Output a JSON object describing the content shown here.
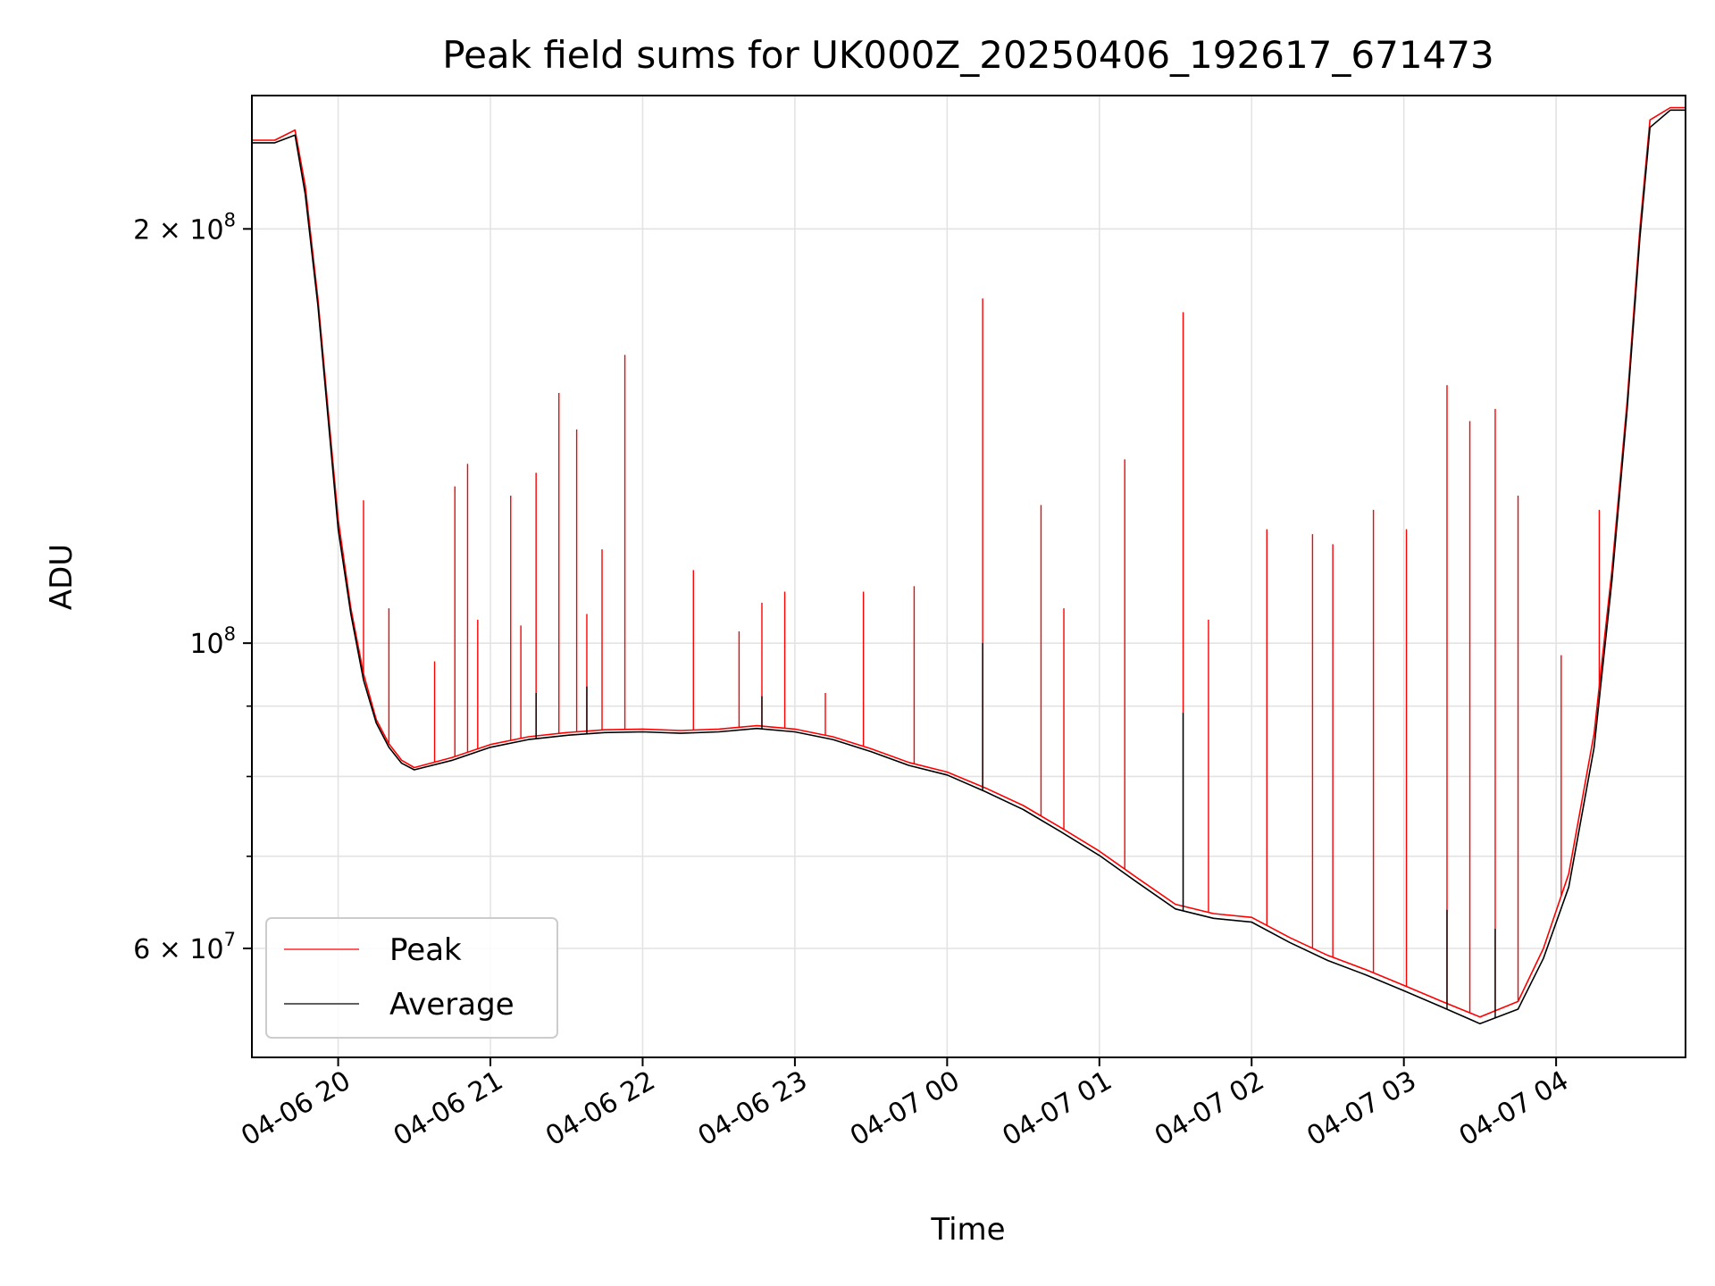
{
  "chart_data": {
    "type": "line",
    "title": "Peak field sums for UK000Z_20250406_192617_671473",
    "xlabel": "Time",
    "ylabel": "ADU",
    "y_scale": "log",
    "ylim": [
      50000000,
      250000000
    ],
    "xlim": [
      "2025-04-06 19:26",
      "2025-04-07 04:51"
    ],
    "grid": true,
    "legend_position": "lower-left",
    "x_ticks": [
      {
        "t": "2025-04-06 20:00",
        "label": "04-06 20"
      },
      {
        "t": "2025-04-06 21:00",
        "label": "04-06 21"
      },
      {
        "t": "2025-04-06 22:00",
        "label": "04-06 22"
      },
      {
        "t": "2025-04-06 23:00",
        "label": "04-06 23"
      },
      {
        "t": "2025-04-07 00:00",
        "label": "04-07 00"
      },
      {
        "t": "2025-04-07 01:00",
        "label": "04-07 01"
      },
      {
        "t": "2025-04-07 02:00",
        "label": "04-07 02"
      },
      {
        "t": "2025-04-07 03:00",
        "label": "04-07 03"
      },
      {
        "t": "2025-04-07 04:00",
        "label": "04-07 04"
      }
    ],
    "y_ticks": [
      {
        "value": 200000000,
        "base": "2 × 10",
        "exp": "8"
      },
      {
        "value": 100000000,
        "base": "10",
        "exp": "8"
      },
      {
        "value": 60000000,
        "base": "6 × 10",
        "exp": "7"
      }
    ],
    "y_minor_ticks": [
      70000000,
      80000000,
      90000000
    ],
    "series": [
      {
        "name": "Peak",
        "color": "#ff0000",
        "baseline": [
          [
            "2025-04-06 19:26",
            232000000
          ],
          [
            "2025-04-06 19:35",
            232000000
          ],
          [
            "2025-04-06 19:43",
            236000000
          ],
          [
            "2025-04-06 19:47",
            215000000
          ],
          [
            "2025-04-06 19:52",
            178000000
          ],
          [
            "2025-04-06 19:56",
            148000000
          ],
          [
            "2025-04-06 20:00",
            123000000
          ],
          [
            "2025-04-06 20:05",
            106000000
          ],
          [
            "2025-04-06 20:10",
            95000000
          ],
          [
            "2025-04-06 20:15",
            88000000
          ],
          [
            "2025-04-06 20:20",
            84500000
          ],
          [
            "2025-04-06 20:25",
            82200000
          ],
          [
            "2025-04-06 20:30",
            81200000
          ],
          [
            "2025-04-06 20:45",
            82600000
          ],
          [
            "2025-04-06 21:00",
            84400000
          ],
          [
            "2025-04-06 21:15",
            85500000
          ],
          [
            "2025-04-06 21:30",
            86100000
          ],
          [
            "2025-04-06 21:45",
            86500000
          ],
          [
            "2025-04-06 22:00",
            86600000
          ],
          [
            "2025-04-06 22:15",
            86400000
          ],
          [
            "2025-04-06 22:30",
            86600000
          ],
          [
            "2025-04-06 22:45",
            87100000
          ],
          [
            "2025-04-06 23:00",
            86600000
          ],
          [
            "2025-04-06 23:15",
            85500000
          ],
          [
            "2025-04-06 23:30",
            83800000
          ],
          [
            "2025-04-06 23:45",
            81900000
          ],
          [
            "2025-04-07 00:00",
            80600000
          ],
          [
            "2025-04-07 00:15",
            78500000
          ],
          [
            "2025-04-07 00:30",
            76200000
          ],
          [
            "2025-04-07 00:45",
            73400000
          ],
          [
            "2025-04-07 01:00",
            70600000
          ],
          [
            "2025-04-07 01:15",
            67500000
          ],
          [
            "2025-04-07 01:30",
            64600000
          ],
          [
            "2025-04-07 01:45",
            63600000
          ],
          [
            "2025-04-07 02:00",
            63200000
          ],
          [
            "2025-04-07 02:15",
            61100000
          ],
          [
            "2025-04-07 02:30",
            59300000
          ],
          [
            "2025-04-07 02:45",
            57900000
          ],
          [
            "2025-04-07 03:00",
            56400000
          ],
          [
            "2025-04-07 03:15",
            54900000
          ],
          [
            "2025-04-07 03:30",
            53500000
          ],
          [
            "2025-04-07 03:45",
            54900000
          ],
          [
            "2025-04-07 03:55",
            60000000
          ],
          [
            "2025-04-07 04:05",
            68000000
          ],
          [
            "2025-04-07 04:15",
            86000000
          ],
          [
            "2025-04-07 04:22",
            113000000
          ],
          [
            "2025-04-07 04:28",
            150000000
          ],
          [
            "2025-04-07 04:33",
            200000000
          ],
          [
            "2025-04-07 04:37",
            240000000
          ],
          [
            "2025-04-07 04:45",
            245000000
          ],
          [
            "2025-04-07 04:51",
            245000000
          ]
        ],
        "spikes": [
          [
            "2025-04-06 20:10",
            127000000
          ],
          [
            "2025-04-06 20:20",
            106000000
          ],
          [
            "2025-04-06 20:38",
            97000000
          ],
          [
            "2025-04-06 20:46",
            130000000
          ],
          [
            "2025-04-06 20:51",
            135000000
          ],
          [
            "2025-04-06 20:55",
            104000000
          ],
          [
            "2025-04-06 21:08",
            128000000
          ],
          [
            "2025-04-06 21:12",
            103000000
          ],
          [
            "2025-04-06 21:18",
            133000000
          ],
          [
            "2025-04-06 21:27",
            152000000
          ],
          [
            "2025-04-06 21:34",
            143000000
          ],
          [
            "2025-04-06 21:38",
            105000000
          ],
          [
            "2025-04-06 21:44",
            117000000
          ],
          [
            "2025-04-06 21:53",
            162000000
          ],
          [
            "2025-04-06 22:20",
            113000000
          ],
          [
            "2025-04-06 22:38",
            102000000
          ],
          [
            "2025-04-06 22:47",
            107000000
          ],
          [
            "2025-04-06 22:56",
            109000000
          ],
          [
            "2025-04-06 23:12",
            92000000
          ],
          [
            "2025-04-06 23:27",
            109000000
          ],
          [
            "2025-04-06 23:47",
            110000000
          ],
          [
            "2025-04-07 00:14",
            178000000
          ],
          [
            "2025-04-07 00:37",
            126000000
          ],
          [
            "2025-04-07 00:46",
            106000000
          ],
          [
            "2025-04-07 01:10",
            136000000
          ],
          [
            "2025-04-07 01:33",
            174000000
          ],
          [
            "2025-04-07 01:43",
            104000000
          ],
          [
            "2025-04-07 02:06",
            121000000
          ],
          [
            "2025-04-07 02:24",
            120000000
          ],
          [
            "2025-04-07 02:32",
            118000000
          ],
          [
            "2025-04-07 02:48",
            125000000
          ],
          [
            "2025-04-07 03:01",
            121000000
          ],
          [
            "2025-04-07 03:17",
            154000000
          ],
          [
            "2025-04-07 03:26",
            145000000
          ],
          [
            "2025-04-07 03:36",
            148000000
          ],
          [
            "2025-04-07 03:45",
            128000000
          ],
          [
            "2025-04-07 04:02",
            98000000
          ],
          [
            "2025-04-07 04:17",
            125000000
          ]
        ]
      },
      {
        "name": "Average",
        "color": "#000000",
        "baseline": [
          [
            "2025-04-06 19:26",
            231000000
          ],
          [
            "2025-04-06 19:35",
            231000000
          ],
          [
            "2025-04-06 19:43",
            234000000
          ],
          [
            "2025-04-06 19:47",
            212000000
          ],
          [
            "2025-04-06 19:52",
            176000000
          ],
          [
            "2025-04-06 19:56",
            146000000
          ],
          [
            "2025-04-06 20:00",
            121000000
          ],
          [
            "2025-04-06 20:05",
            105000000
          ],
          [
            "2025-04-06 20:10",
            94000000
          ],
          [
            "2025-04-06 20:15",
            87500000
          ],
          [
            "2025-04-06 20:20",
            84000000
          ],
          [
            "2025-04-06 20:25",
            81800000
          ],
          [
            "2025-04-06 20:30",
            80900000
          ],
          [
            "2025-04-06 20:45",
            82200000
          ],
          [
            "2025-04-06 21:00",
            84000000
          ],
          [
            "2025-04-06 21:15",
            85100000
          ],
          [
            "2025-04-06 21:30",
            85700000
          ],
          [
            "2025-04-06 21:45",
            86100000
          ],
          [
            "2025-04-06 22:00",
            86200000
          ],
          [
            "2025-04-06 22:15",
            86000000
          ],
          [
            "2025-04-06 22:30",
            86200000
          ],
          [
            "2025-04-06 22:45",
            86700000
          ],
          [
            "2025-04-06 23:00",
            86200000
          ],
          [
            "2025-04-06 23:15",
            85100000
          ],
          [
            "2025-04-06 23:30",
            83400000
          ],
          [
            "2025-04-06 23:45",
            81500000
          ],
          [
            "2025-04-07 00:00",
            80200000
          ],
          [
            "2025-04-07 00:15",
            78000000
          ],
          [
            "2025-04-07 00:30",
            75700000
          ],
          [
            "2025-04-07 00:45",
            72900000
          ],
          [
            "2025-04-07 01:00",
            70100000
          ],
          [
            "2025-04-07 01:15",
            67000000
          ],
          [
            "2025-04-07 01:30",
            64100000
          ],
          [
            "2025-04-07 01:45",
            63100000
          ],
          [
            "2025-04-07 02:00",
            62700000
          ],
          [
            "2025-04-07 02:15",
            60600000
          ],
          [
            "2025-04-07 02:30",
            58800000
          ],
          [
            "2025-04-07 02:45",
            57400000
          ],
          [
            "2025-04-07 03:00",
            55900000
          ],
          [
            "2025-04-07 03:15",
            54400000
          ],
          [
            "2025-04-07 03:30",
            52900000
          ],
          [
            "2025-04-07 03:45",
            54200000
          ],
          [
            "2025-04-07 03:55",
            59000000
          ],
          [
            "2025-04-07 04:05",
            66500000
          ],
          [
            "2025-04-07 04:15",
            84000000
          ],
          [
            "2025-04-07 04:22",
            111000000
          ],
          [
            "2025-04-07 04:28",
            148000000
          ],
          [
            "2025-04-07 04:33",
            197000000
          ],
          [
            "2025-04-07 04:37",
            237000000
          ],
          [
            "2025-04-07 04:45",
            244000000
          ],
          [
            "2025-04-07 04:51",
            244000000
          ]
        ],
        "spikes": [
          [
            "2025-04-06 21:18",
            92000000
          ],
          [
            "2025-04-06 21:38",
            93000000
          ],
          [
            "2025-04-06 22:47",
            91500000
          ],
          [
            "2025-04-07 00:14",
            100000000
          ],
          [
            "2025-04-07 01:33",
            89000000
          ],
          [
            "2025-04-07 03:17",
            64000000
          ],
          [
            "2025-04-07 03:36",
            62000000
          ]
        ]
      }
    ]
  }
}
